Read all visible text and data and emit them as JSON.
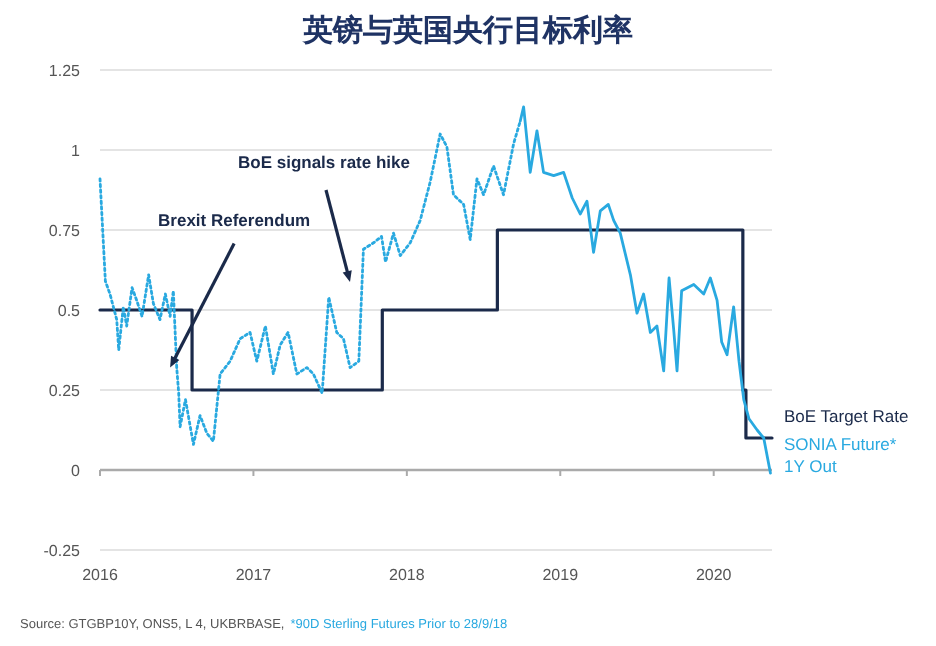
{
  "chart_data": {
    "type": "line",
    "title": "英镑与英国央行目标利率",
    "xlim": [
      2016,
      2020.38
    ],
    "xticks": [
      2016,
      2017,
      2018,
      2019,
      2020
    ],
    "ylim": [
      -0.25,
      1.25
    ],
    "yticks": [
      -0.25,
      0,
      0.25,
      0.5,
      0.75,
      1,
      1.25
    ],
    "grid": "y",
    "legend": false,
    "series": [
      {
        "name": "BoE Target Rate",
        "type": "step",
        "color": "#1b2a4a",
        "line_style": "solid",
        "x": [
          2016,
          2016.6,
          2017.84,
          2018.59,
          2020.19,
          2020.21,
          2020.38
        ],
        "values": [
          0.5,
          0.25,
          0.5,
          0.75,
          0.25,
          0.1,
          0.1
        ]
      },
      {
        "color": "#29a9e0",
        "line_style": "dotted",
        "x": [
          2016.0,
          2016.035,
          2016.065,
          2016.109,
          2016.122,
          2016.152,
          2016.174,
          2016.209,
          2016.239,
          2016.274,
          2016.317,
          2016.348,
          2016.391,
          2016.426,
          2016.457,
          2016.478,
          2016.5,
          2016.513,
          2016.522,
          2016.557,
          2016.609,
          2016.652,
          2016.696,
          2016.739,
          2016.783,
          2016.848,
          2016.913,
          2016.978,
          2017.022,
          2017.078,
          2017.13,
          2017.174,
          2017.226,
          2017.283,
          2017.348,
          2017.391,
          2017.448,
          2017.491,
          2017.543,
          2017.587,
          2017.63,
          2017.687,
          2017.717,
          2017.783,
          2017.835,
          2017.861,
          2017.913,
          2017.957,
          2018.022,
          2018.087,
          2018.152,
          2018.217,
          2018.261,
          2018.304,
          2018.37,
          2018.413,
          2018.457,
          2018.5,
          2018.565,
          2018.63,
          2018.696,
          2018.739
        ],
        "values": [
          0.91,
          0.59,
          0.55,
          0.47,
          0.375,
          0.51,
          0.45,
          0.57,
          0.53,
          0.48,
          0.61,
          0.52,
          0.47,
          0.55,
          0.48,
          0.56,
          0.32,
          0.24,
          0.135,
          0.22,
          0.08,
          0.17,
          0.115,
          0.09,
          0.3,
          0.34,
          0.41,
          0.43,
          0.34,
          0.45,
          0.3,
          0.39,
          0.43,
          0.3,
          0.32,
          0.3,
          0.24,
          0.54,
          0.43,
          0.41,
          0.32,
          0.34,
          0.69,
          0.71,
          0.73,
          0.65,
          0.74,
          0.67,
          0.71,
          0.78,
          0.9,
          1.05,
          1.01,
          0.86,
          0.83,
          0.72,
          0.91,
          0.86,
          0.95,
          0.86,
          1.02,
          1.09
        ]
      },
      {
        "name": "SONIA Future* 1Y Out",
        "color": "#29a9e0",
        "line_style": "solid",
        "x": [
          2018.739,
          2018.761,
          2018.804,
          2018.848,
          2018.891,
          2018.957,
          2019.022,
          2019.078,
          2019.13,
          2019.174,
          2019.217,
          2019.261,
          2019.313,
          2019.348,
          2019.391,
          2019.457,
          2019.5,
          2019.543,
          2019.587,
          2019.63,
          2019.674,
          2019.709,
          2019.739,
          2019.761,
          2019.791,
          2019.87,
          2019.935,
          2019.978,
          2020.022,
          2020.052,
          2020.087,
          2020.13,
          2020.165,
          2020.196,
          2020.23,
          2020.283,
          2020.326,
          2020.37
        ],
        "values": [
          1.09,
          1.135,
          0.93,
          1.06,
          0.93,
          0.92,
          0.93,
          0.85,
          0.8,
          0.84,
          0.68,
          0.81,
          0.83,
          0.78,
          0.74,
          0.61,
          0.49,
          0.55,
          0.43,
          0.45,
          0.31,
          0.6,
          0.44,
          0.31,
          0.56,
          0.58,
          0.55,
          0.6,
          0.53,
          0.4,
          0.36,
          0.51,
          0.34,
          0.22,
          0.16,
          0.125,
          0.1,
          -0.01
        ]
      }
    ],
    "annotations": [
      {
        "text": "Brexit Referendum",
        "x": 2016.457,
        "y": 0.32
      },
      "BoE signals rate hike",
      "Source: GTGBP10Y, ONS5, L 4, UKBRBASE,",
      "*90D Sterling Futures Prior to 28/9/18"
    ]
  }
}
